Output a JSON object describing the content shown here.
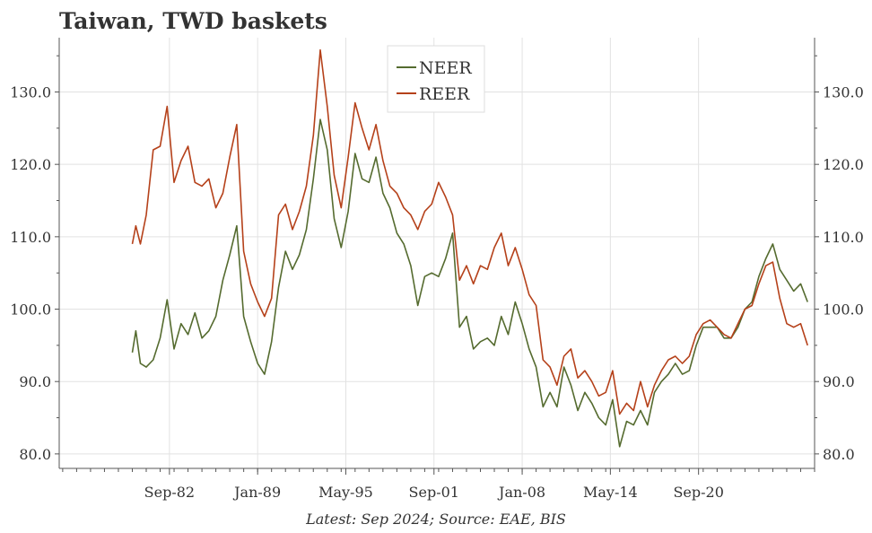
{
  "chart_data": {
    "type": "line",
    "title": "Taiwan, TWD baskets",
    "source": "Latest: Sep 2024; Source: EAE, BIS",
    "xlabel": "",
    "ylabel": "",
    "ylim": [
      78.0,
      137.5
    ],
    "yticks": [
      80.0,
      90.0,
      100.0,
      110.0,
      120.0,
      130.0
    ],
    "ytick_labels": [
      "80.0",
      "90.0",
      "100.0",
      "110.0",
      "120.0",
      "130.0"
    ],
    "y_axis_both_sides": true,
    "xlim": [
      "1974-10",
      "2029-01"
    ],
    "xticks": [
      "1982-09",
      "1989-01",
      "1995-05",
      "2001-09",
      "2008-01",
      "2014-05",
      "2020-09"
    ],
    "xtick_labels": [
      "Sep-82",
      "Jan-89",
      "May-95",
      "Sep-01",
      "Jan-08",
      "May-14",
      "Sep-20"
    ],
    "grid": true,
    "legend_position": "top-center",
    "series": [
      {
        "name": "NEER",
        "color": "#556b2f",
        "points": [
          [
            "1980-01",
            94.0
          ],
          [
            "1980-04",
            97.0
          ],
          [
            "1980-08",
            92.5
          ],
          [
            "1981-01",
            92.0
          ],
          [
            "1981-07",
            93.0
          ],
          [
            "1982-01",
            96.0
          ],
          [
            "1982-07",
            101.3
          ],
          [
            "1983-01",
            94.5
          ],
          [
            "1983-07",
            98.0
          ],
          [
            "1984-01",
            96.5
          ],
          [
            "1984-07",
            99.5
          ],
          [
            "1985-01",
            96.0
          ],
          [
            "1985-07",
            97.0
          ],
          [
            "1986-01",
            99.0
          ],
          [
            "1986-07",
            104.0
          ],
          [
            "1987-01",
            107.5
          ],
          [
            "1987-07",
            111.5
          ],
          [
            "1988-01",
            99.0
          ],
          [
            "1988-07",
            95.5
          ],
          [
            "1989-01",
            92.5
          ],
          [
            "1989-07",
            91.0
          ],
          [
            "1990-01",
            95.5
          ],
          [
            "1990-07",
            103.0
          ],
          [
            "1991-01",
            108.0
          ],
          [
            "1991-07",
            105.5
          ],
          [
            "1992-01",
            107.5
          ],
          [
            "1992-07",
            111.0
          ],
          [
            "1993-01",
            118.0
          ],
          [
            "1993-07",
            126.2
          ],
          [
            "1994-01",
            122.0
          ],
          [
            "1994-07",
            112.5
          ],
          [
            "1995-01",
            108.5
          ],
          [
            "1995-07",
            113.5
          ],
          [
            "1996-01",
            121.5
          ],
          [
            "1996-07",
            118.0
          ],
          [
            "1997-01",
            117.5
          ],
          [
            "1997-07",
            121.0
          ],
          [
            "1998-01",
            116.0
          ],
          [
            "1998-07",
            114.0
          ],
          [
            "1999-01",
            110.5
          ],
          [
            "1999-07",
            109.0
          ],
          [
            "2000-01",
            106.0
          ],
          [
            "2000-07",
            100.5
          ],
          [
            "2001-01",
            104.5
          ],
          [
            "2001-07",
            105.0
          ],
          [
            "2002-01",
            104.5
          ],
          [
            "2002-07",
            107.0
          ],
          [
            "2003-01",
            110.5
          ],
          [
            "2003-07",
            97.5
          ],
          [
            "2004-01",
            99.0
          ],
          [
            "2004-07",
            94.5
          ],
          [
            "2005-01",
            95.5
          ],
          [
            "2005-07",
            96.0
          ],
          [
            "2006-01",
            95.0
          ],
          [
            "2006-07",
            99.0
          ],
          [
            "2007-01",
            96.5
          ],
          [
            "2007-07",
            101.0
          ],
          [
            "2008-01",
            98.0
          ],
          [
            "2008-07",
            94.5
          ],
          [
            "2009-01",
            92.0
          ],
          [
            "2009-07",
            86.5
          ],
          [
            "2010-01",
            88.5
          ],
          [
            "2010-07",
            86.5
          ],
          [
            "2011-01",
            92.0
          ],
          [
            "2011-07",
            89.5
          ],
          [
            "2012-01",
            86.0
          ],
          [
            "2012-07",
            88.5
          ],
          [
            "2013-01",
            87.0
          ],
          [
            "2013-07",
            85.0
          ],
          [
            "2014-01",
            84.0
          ],
          [
            "2014-07",
            87.5
          ],
          [
            "2015-01",
            81.0
          ],
          [
            "2015-07",
            84.5
          ],
          [
            "2016-01",
            84.0
          ],
          [
            "2016-07",
            86.0
          ],
          [
            "2017-01",
            84.0
          ],
          [
            "2017-07",
            88.5
          ],
          [
            "2018-01",
            90.0
          ],
          [
            "2018-07",
            91.0
          ],
          [
            "2019-01",
            92.5
          ],
          [
            "2019-07",
            91.0
          ],
          [
            "2020-01",
            91.5
          ],
          [
            "2020-07",
            95.0
          ],
          [
            "2021-01",
            97.5
          ],
          [
            "2021-07",
            97.5
          ],
          [
            "2022-01",
            97.5
          ],
          [
            "2022-07",
            96.0
          ],
          [
            "2023-01",
            96.0
          ],
          [
            "2023-07",
            97.5
          ],
          [
            "2024-01",
            100.0
          ],
          [
            "2024-07",
            101.0
          ],
          [
            "2025-01",
            104.5
          ],
          [
            "2025-07",
            107.0
          ],
          [
            "2026-01",
            109.0
          ],
          [
            "2026-07",
            105.5
          ],
          [
            "2027-01",
            104.0
          ],
          [
            "2027-07",
            102.5
          ],
          [
            "2028-01",
            103.5
          ],
          [
            "2028-07",
            101.0
          ]
        ]
      },
      {
        "name": "REER",
        "color": "#b5411a",
        "points": [
          [
            "1980-01",
            109.0
          ],
          [
            "1980-04",
            111.5
          ],
          [
            "1980-08",
            109.0
          ],
          [
            "1981-01",
            113.0
          ],
          [
            "1981-07",
            122.0
          ],
          [
            "1982-01",
            122.5
          ],
          [
            "1982-07",
            128.0
          ],
          [
            "1983-01",
            117.5
          ],
          [
            "1983-07",
            120.5
          ],
          [
            "1984-01",
            122.5
          ],
          [
            "1984-07",
            117.5
          ],
          [
            "1985-01",
            117.0
          ],
          [
            "1985-07",
            118.0
          ],
          [
            "1986-01",
            114.0
          ],
          [
            "1986-07",
            116.0
          ],
          [
            "1987-01",
            121.0
          ],
          [
            "1987-07",
            125.5
          ],
          [
            "1988-01",
            108.0
          ],
          [
            "1988-07",
            103.5
          ],
          [
            "1989-01",
            101.0
          ],
          [
            "1989-07",
            99.0
          ],
          [
            "1990-01",
            101.5
          ],
          [
            "1990-07",
            113.0
          ],
          [
            "1991-01",
            114.5
          ],
          [
            "1991-07",
            111.0
          ],
          [
            "1992-01",
            113.5
          ],
          [
            "1992-07",
            117.0
          ],
          [
            "1993-01",
            124.0
          ],
          [
            "1993-07",
            135.8
          ],
          [
            "1994-01",
            128.0
          ],
          [
            "1994-07",
            118.5
          ],
          [
            "1995-01",
            114.0
          ],
          [
            "1995-07",
            121.0
          ],
          [
            "1996-01",
            128.5
          ],
          [
            "1996-07",
            125.0
          ],
          [
            "1997-01",
            122.0
          ],
          [
            "1997-07",
            125.5
          ],
          [
            "1998-01",
            120.5
          ],
          [
            "1998-07",
            117.0
          ],
          [
            "1999-01",
            116.0
          ],
          [
            "1999-07",
            114.0
          ],
          [
            "2000-01",
            113.0
          ],
          [
            "2000-07",
            111.0
          ],
          [
            "2001-01",
            113.5
          ],
          [
            "2001-07",
            114.5
          ],
          [
            "2002-01",
            117.5
          ],
          [
            "2002-07",
            115.5
          ],
          [
            "2003-01",
            113.0
          ],
          [
            "2003-07",
            104.0
          ],
          [
            "2004-01",
            106.0
          ],
          [
            "2004-07",
            103.5
          ],
          [
            "2005-01",
            106.0
          ],
          [
            "2005-07",
            105.5
          ],
          [
            "2006-01",
            108.5
          ],
          [
            "2006-07",
            110.5
          ],
          [
            "2007-01",
            106.0
          ],
          [
            "2007-07",
            108.5
          ],
          [
            "2008-01",
            105.5
          ],
          [
            "2008-07",
            102.0
          ],
          [
            "2009-01",
            100.5
          ],
          [
            "2009-07",
            93.0
          ],
          [
            "2010-01",
            92.0
          ],
          [
            "2010-07",
            89.5
          ],
          [
            "2011-01",
            93.5
          ],
          [
            "2011-07",
            94.5
          ],
          [
            "2012-01",
            90.5
          ],
          [
            "2012-07",
            91.5
          ],
          [
            "2013-01",
            90.0
          ],
          [
            "2013-07",
            88.0
          ],
          [
            "2014-01",
            88.5
          ],
          [
            "2014-07",
            91.5
          ],
          [
            "2015-01",
            85.5
          ],
          [
            "2015-07",
            87.0
          ],
          [
            "2016-01",
            86.0
          ],
          [
            "2016-07",
            90.0
          ],
          [
            "2017-01",
            86.5
          ],
          [
            "2017-07",
            89.5
          ],
          [
            "2018-01",
            91.5
          ],
          [
            "2018-07",
            93.0
          ],
          [
            "2019-01",
            93.5
          ],
          [
            "2019-07",
            92.5
          ],
          [
            "2020-01",
            93.5
          ],
          [
            "2020-07",
            96.5
          ],
          [
            "2021-01",
            98.0
          ],
          [
            "2021-07",
            98.5
          ],
          [
            "2022-01",
            97.5
          ],
          [
            "2022-07",
            96.5
          ],
          [
            "2023-01",
            96.0
          ],
          [
            "2023-07",
            98.0
          ],
          [
            "2024-01",
            100.0
          ],
          [
            "2024-07",
            100.5
          ],
          [
            "2025-01",
            103.5
          ],
          [
            "2025-07",
            106.0
          ],
          [
            "2026-01",
            106.5
          ],
          [
            "2026-07",
            101.5
          ],
          [
            "2027-01",
            98.0
          ],
          [
            "2027-07",
            97.5
          ],
          [
            "2028-01",
            98.0
          ],
          [
            "2028-07",
            95.0
          ]
        ]
      }
    ]
  }
}
